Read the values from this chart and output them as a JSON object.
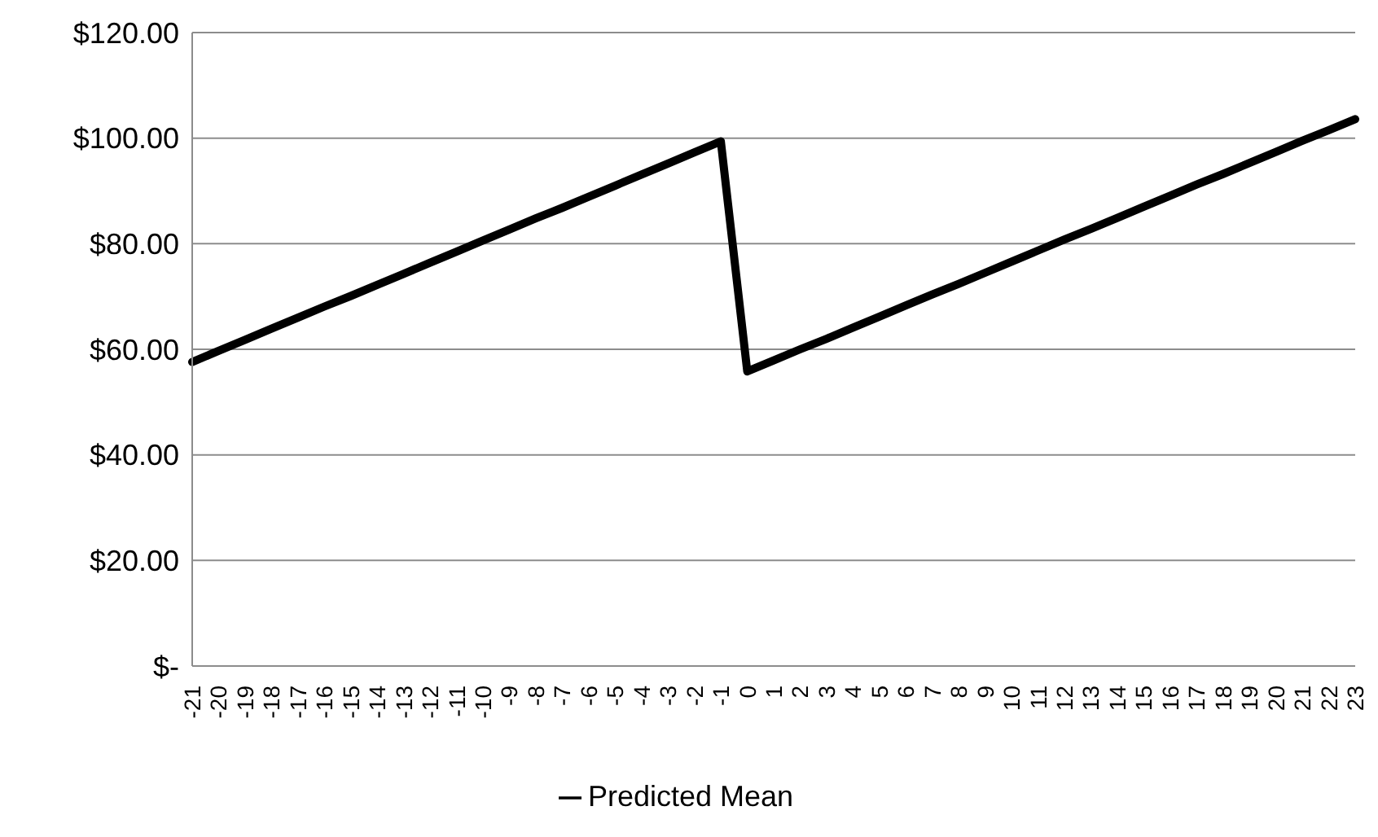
{
  "chart_data": {
    "type": "line",
    "categories": [
      "-21",
      "-20",
      "-19",
      "-18",
      "-17",
      "-16",
      "-15",
      "-14",
      "-13",
      "-12",
      "-11",
      "-10",
      "-9",
      "-8",
      "-7",
      "-6",
      "-5",
      "-4",
      "-3",
      "-2",
      "-1",
      "0",
      "1",
      "2",
      "3",
      "4",
      "5",
      "6",
      "7",
      "8",
      "9",
      "10",
      "11",
      "12",
      "13",
      "14",
      "15",
      "16",
      "17",
      "18",
      "19",
      "20",
      "21",
      "22",
      "23"
    ],
    "series": [
      {
        "name": "Predicted Mean",
        "color": "#000000",
        "values": [
          57.6,
          59.7,
          61.8,
          63.9,
          66.0,
          68.1,
          70.1,
          72.2,
          74.3,
          76.4,
          78.5,
          80.6,
          82.7,
          84.8,
          86.8,
          88.9,
          91.0,
          93.1,
          95.2,
          97.3,
          99.4,
          55.8,
          57.9,
          60.0,
          62.0,
          64.1,
          66.2,
          68.3,
          70.4,
          72.4,
          74.5,
          76.6,
          78.7,
          80.8,
          82.8,
          84.9,
          87.0,
          89.1,
          91.2,
          93.2,
          95.3,
          97.4,
          99.5,
          101.5,
          103.6
        ]
      }
    ],
    "ylim": [
      0,
      120
    ],
    "yticks": [
      {
        "value": 0,
        "label": "$-"
      },
      {
        "value": 20,
        "label": "$20.00"
      },
      {
        "value": 40,
        "label": "$40.00"
      },
      {
        "value": 60,
        "label": "$60.00"
      },
      {
        "value": 80,
        "label": "$80.00"
      },
      {
        "value": 100,
        "label": "$100.00"
      },
      {
        "value": 120,
        "label": "$120.00"
      }
    ],
    "grid": "y",
    "legend": "bottom",
    "marker": "none",
    "line_style": "solid"
  }
}
